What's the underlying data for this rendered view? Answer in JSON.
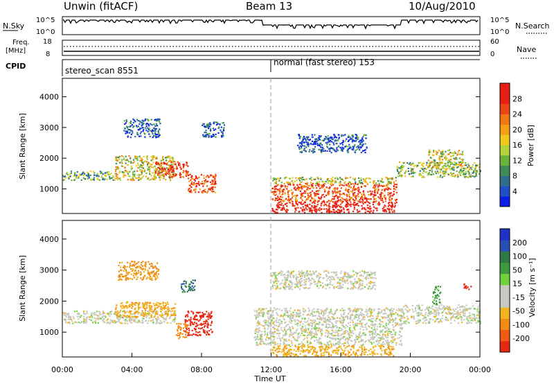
{
  "header": {
    "station": "Unwin (fitACF)",
    "beam": "Beam 13",
    "date": "10/Aug/2010"
  },
  "top_panels": {
    "nsky_label": "N.Sky",
    "nsky_ticks": [
      "10^5",
      "10^0"
    ],
    "nsearch_ticks": [
      "10^5",
      "10^0"
    ],
    "nsearch_label": "N.Search",
    "freq_label_1": "Freq.",
    "freq_label_2": "[MHz]",
    "freq_ticks": [
      "18",
      "8"
    ],
    "nave_ticks": [
      "60",
      "0"
    ],
    "nave_label": "Nave",
    "cpid_label": "CPID",
    "cpid_mode_1": "stereo_scan 8551",
    "cpid_mode_2": "normal (fast stereo) 153"
  },
  "colors": {
    "power_scale": [
      "#0a1ee6",
      "#1e50c8",
      "#2e6e8c",
      "#3e8c5a",
      "#6ab43c",
      "#b4d23c",
      "#f0c81e",
      "#f5a014",
      "#f07814",
      "#eb4614",
      "#e61e14",
      "#e61e14"
    ],
    "velocity_scale": [
      "#1e32c8",
      "#2850b4",
      "#2e7a46",
      "#3c9a3c",
      "#6ed23c",
      "#c8c8c0",
      "#c8c8c0",
      "#f0b41e",
      "#f08c14",
      "#f05a14",
      "#e62814"
    ]
  },
  "chart_data": [
    {
      "type": "heatmap",
      "name": "power",
      "ylabel": "Slant Range [km]",
      "ylim": [
        200,
        4600
      ],
      "yticks": [
        "1000",
        "2000",
        "3000",
        "4000"
      ],
      "colorbar_label": "Power [dB]",
      "colorbar_ticks": [
        "4",
        "8",
        "12",
        "16",
        "20",
        "24",
        "28"
      ],
      "scatter_regions": [
        {
          "t0": 0.0,
          "t1": 3.0,
          "r0": 1300,
          "r1": 1600,
          "level": 0.35
        },
        {
          "t0": 3.0,
          "t1": 6.5,
          "r0": 1300,
          "r1": 2100,
          "level": 0.5
        },
        {
          "t0": 5.3,
          "t1": 7.2,
          "r0": 1400,
          "r1": 1900,
          "level": 0.85
        },
        {
          "t0": 7.2,
          "t1": 8.8,
          "r0": 900,
          "r1": 1500,
          "level": 0.8
        },
        {
          "t0": 3.5,
          "t1": 5.6,
          "r0": 2700,
          "r1": 3300,
          "level": 0.15
        },
        {
          "t0": 8.0,
          "t1": 9.3,
          "r0": 2700,
          "r1": 3200,
          "level": 0.15
        },
        {
          "t0": 12.0,
          "t1": 19.2,
          "r0": 600,
          "r1": 1200,
          "level": 0.8
        },
        {
          "t0": 12.0,
          "t1": 19.2,
          "r0": 250,
          "r1": 600,
          "level": 1.0
        },
        {
          "t0": 12.0,
          "t1": 19.2,
          "r0": 1200,
          "r1": 1400,
          "level": 0.45
        },
        {
          "t0": 13.5,
          "t1": 17.5,
          "r0": 2200,
          "r1": 2800,
          "level": 0.15
        },
        {
          "t0": 19.2,
          "t1": 24.0,
          "r0": 1400,
          "r1": 1900,
          "level": 0.4
        },
        {
          "t0": 21.0,
          "t1": 23.0,
          "r0": 1700,
          "r1": 2300,
          "level": 0.5
        }
      ]
    },
    {
      "type": "heatmap",
      "name": "velocity",
      "ylabel": "Slant Range [km]",
      "xlabel": "Time UT",
      "ylim": [
        200,
        4600
      ],
      "yticks": [
        "1000",
        "2000",
        "3000",
        "4000"
      ],
      "xlim": [
        0,
        24
      ],
      "xticks": [
        "00:00",
        "04:00",
        "08:00",
        "12:00",
        "16:00",
        "20:00",
        "00:00"
      ],
      "colorbar_label": "Velocity [m s⁻¹]",
      "colorbar_ticks": [
        "200",
        "100",
        "50",
        "15",
        "-15",
        "-50",
        "-100",
        "-200"
      ],
      "scatter_regions": [
        {
          "t0": 0.0,
          "t1": 6.5,
          "r0": 1300,
          "r1": 1700,
          "vel": 0
        },
        {
          "t0": 3.0,
          "t1": 6.5,
          "r0": 1500,
          "r1": 2000,
          "vel": -40
        },
        {
          "t0": 3.2,
          "t1": 5.5,
          "r0": 2700,
          "r1": 3300,
          "vel": -60
        },
        {
          "t0": 6.8,
          "t1": 7.6,
          "r0": 2300,
          "r1": 2700,
          "vel": 150
        },
        {
          "t0": 7.0,
          "t1": 8.6,
          "r0": 900,
          "r1": 1700,
          "vel": -220
        },
        {
          "t0": 6.5,
          "t1": 7.2,
          "r0": 800,
          "r1": 1300,
          "vel": -80
        },
        {
          "t0": 11.0,
          "t1": 19.5,
          "r0": 600,
          "r1": 1800,
          "vel": 0
        },
        {
          "t0": 12.0,
          "t1": 19.0,
          "r0": 250,
          "r1": 600,
          "vel": -40
        },
        {
          "t0": 12.0,
          "t1": 18.0,
          "r0": 2400,
          "r1": 3000,
          "vel": 0
        },
        {
          "t0": 19.5,
          "t1": 24.0,
          "r0": 1300,
          "r1": 1900,
          "vel": 0
        },
        {
          "t0": 21.2,
          "t1": 21.7,
          "r0": 1900,
          "r1": 2500,
          "vel": 60
        },
        {
          "t0": 23.0,
          "t1": 23.5,
          "r0": 2400,
          "r1": 2600,
          "vel": -250
        }
      ]
    }
  ]
}
